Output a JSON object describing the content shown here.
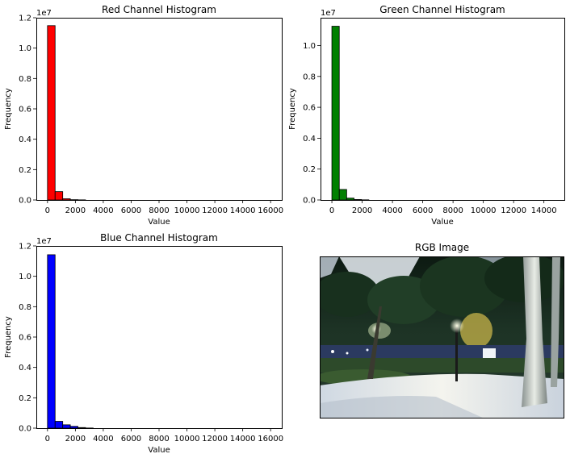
{
  "chart_data": [
    {
      "type": "bar",
      "title": "Red Channel Histogram",
      "xlabel": "Value",
      "ylabel": "Frequency",
      "y_offset_label": "1e7",
      "color": "#ff0000",
      "edge_color": "#000000",
      "xlim": [
        -800,
        16800
      ],
      "ylim": [
        0,
        1.2
      ],
      "xticks": [
        0,
        2000,
        4000,
        6000,
        8000,
        10000,
        12000,
        14000,
        16000
      ],
      "yticks": [
        0.0,
        0.2,
        0.4,
        0.6,
        0.8,
        1.0,
        1.2
      ],
      "bin_width": 546,
      "bins_start": 0,
      "values": [
        1.148,
        0.055,
        0.008,
        0.002,
        0.0008
      ]
    },
    {
      "type": "bar",
      "title": "Green Channel Histogram",
      "xlabel": "Value",
      "ylabel": "Frequency",
      "y_offset_label": "1e7",
      "color": "#008000",
      "edge_color": "#000000",
      "xlim": [
        -750,
        15350
      ],
      "ylim": [
        0,
        1.18
      ],
      "xticks": [
        0,
        2000,
        4000,
        6000,
        8000,
        10000,
        12000,
        14000
      ],
      "yticks": [
        0.0,
        0.2,
        0.4,
        0.6,
        0.8,
        1.0
      ],
      "bin_width": 488,
      "bins_start": 0,
      "values": [
        1.125,
        0.068,
        0.012,
        0.003,
        0.001
      ]
    },
    {
      "type": "bar",
      "title": "Blue Channel Histogram",
      "xlabel": "Value",
      "ylabel": "Frequency",
      "y_offset_label": "1e7",
      "color": "#0000ff",
      "edge_color": "#000000",
      "xlim": [
        -800,
        16800
      ],
      "ylim": [
        0,
        1.2
      ],
      "xticks": [
        0,
        2000,
        4000,
        6000,
        8000,
        10000,
        12000,
        14000,
        16000
      ],
      "yticks": [
        0.0,
        0.2,
        0.4,
        0.6,
        0.8,
        1.0,
        1.2
      ],
      "bin_width": 546,
      "bins_start": 0,
      "values": [
        1.142,
        0.045,
        0.022,
        0.012,
        0.004,
        0.001
      ]
    }
  ],
  "image_panel": {
    "title": "RGB Image"
  }
}
